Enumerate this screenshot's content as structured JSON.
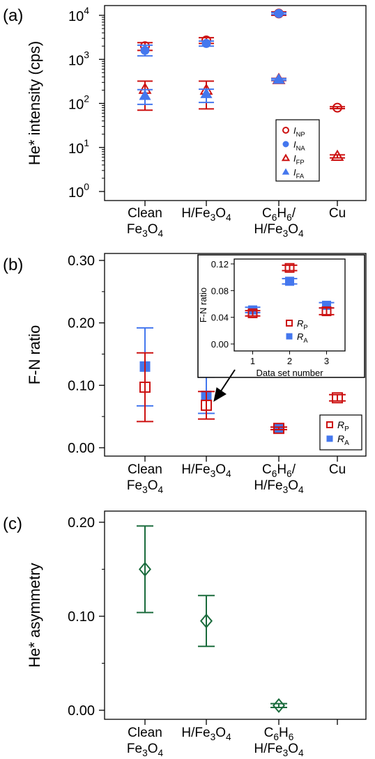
{
  "colors": {
    "red": "#cc1111",
    "blue": "#4477ee",
    "green": "#1a6b3c"
  },
  "chart_data": [
    {
      "panel_label": "(a)",
      "type": "scatter",
      "ylabel": "He* intensity (cps)",
      "yscale": "log",
      "ylim": [
        1,
        10000
      ],
      "yticks": [
        {
          "value": 1,
          "base": "10",
          "exp": "0"
        },
        {
          "value": 10,
          "base": "10",
          "exp": "1"
        },
        {
          "value": 100,
          "base": "10",
          "exp": "2"
        },
        {
          "value": 1000,
          "base": "10",
          "exp": "3"
        },
        {
          "value": 10000,
          "base": "10",
          "exp": "4"
        }
      ],
      "categories": [
        {
          "line1": "Clean",
          "line2": "Fe3O4"
        },
        {
          "line1": "H/Fe3O4",
          "line2": ""
        },
        {
          "line1": "C6H6/",
          "line2": "H/Fe3O4"
        },
        {
          "line1": "Cu",
          "line2": ""
        }
      ],
      "legend": {
        "position": "bottom-right",
        "entries": [
          "I_NP",
          "I_NA",
          "I_FP",
          "I_FA"
        ]
      },
      "series": [
        {
          "name": "I_NP",
          "marker": "circle-open",
          "color": "red",
          "points": [
            {
              "x": 0,
              "y": 2000,
              "lo": 1600,
              "hi": 2400
            },
            {
              "x": 1,
              "y": 2700,
              "lo": 2300,
              "hi": 3100
            },
            {
              "x": 2,
              "y": 11000,
              "lo": 10000,
              "hi": 12000
            },
            {
              "x": 3,
              "y": 80,
              "lo": 76,
              "hi": 84
            }
          ]
        },
        {
          "name": "I_NA",
          "marker": "circle-filled",
          "color": "blue",
          "points": [
            {
              "x": 0,
              "y": 1600,
              "lo": 1200,
              "hi": 2100
            },
            {
              "x": 1,
              "y": 2300,
              "lo": 2000,
              "hi": 2600
            },
            {
              "x": 2,
              "y": 11000,
              "lo": 10500,
              "hi": 11500
            }
          ]
        },
        {
          "name": "I_FP",
          "marker": "triangle-open",
          "color": "red",
          "points": [
            {
              "x": 0,
              "y": 210,
              "lo": 70,
              "hi": 320
            },
            {
              "x": 1,
              "y": 200,
              "lo": 75,
              "hi": 320
            },
            {
              "x": 2,
              "y": 350,
              "lo": 330,
              "hi": 370
            },
            {
              "x": 3,
              "y": 6.3,
              "lo": 5.8,
              "hi": 6.8
            }
          ]
        },
        {
          "name": "I_FA",
          "marker": "triangle-filled",
          "color": "blue",
          "points": [
            {
              "x": 0,
              "y": 150,
              "lo": 95,
              "hi": 205
            },
            {
              "x": 1,
              "y": 165,
              "lo": 105,
              "hi": 210
            },
            {
              "x": 2,
              "y": 350,
              "lo": 335,
              "hi": 365
            }
          ]
        }
      ]
    },
    {
      "panel_label": "(b)",
      "type": "scatter",
      "ylabel": "F-N ratio",
      "ylim": [
        -0.01,
        0.31
      ],
      "yticks": [
        "0.00",
        "0.10",
        "0.20",
        "0.30"
      ],
      "categories": [
        {
          "line1": "Clean",
          "line2": "Fe3O4"
        },
        {
          "line1": "H/Fe3O4",
          "line2": ""
        },
        {
          "line1": "C6H6/",
          "line2": "H/Fe3O4"
        },
        {
          "line1": "Cu",
          "line2": ""
        }
      ],
      "legend": {
        "position": "bottom-right",
        "entries": [
          "R_P",
          "R_A"
        ]
      },
      "series": [
        {
          "name": "R_P",
          "marker": "square-open",
          "color": "red",
          "points": [
            {
              "x": 0,
              "y": 0.097,
              "lo": 0.042,
              "hi": 0.152
            },
            {
              "x": 1,
              "y": 0.068,
              "lo": 0.046,
              "hi": 0.09
            },
            {
              "x": 2,
              "y": 0.031,
              "lo": 0.029,
              "hi": 0.033
            },
            {
              "x": 3,
              "y": 0.08,
              "lo": 0.075,
              "hi": 0.085
            }
          ]
        },
        {
          "name": "R_A",
          "marker": "square-filled",
          "color": "blue",
          "points": [
            {
              "x": 0,
              "y": 0.13,
              "lo": 0.067,
              "hi": 0.192
            },
            {
              "x": 1,
              "y": 0.083,
              "lo": 0.055,
              "hi": 0.113
            },
            {
              "x": 2,
              "y": 0.031,
              "lo": 0.029,
              "hi": 0.033
            }
          ]
        }
      ],
      "inset": {
        "xlabel": "Data set number",
        "ylabel": "F-N ratio",
        "xlim": [
          0.5,
          3.5
        ],
        "ylim": [
          -0.006,
          0.126
        ],
        "xticks": [
          "1",
          "2",
          "3"
        ],
        "yticks": [
          "0.00",
          "0.04",
          "0.08",
          "0.12"
        ],
        "legend": {
          "position": "bottom-right",
          "entries": [
            "R_P",
            "R_A"
          ]
        },
        "series": [
          {
            "name": "R_P",
            "marker": "square-open",
            "color": "red",
            "points": [
              {
                "x": 1,
                "y": 0.046,
                "lo": 0.042,
                "hi": 0.05
              },
              {
                "x": 2,
                "y": 0.114,
                "lo": 0.11,
                "hi": 0.118
              },
              {
                "x": 3,
                "y": 0.049,
                "lo": 0.044,
                "hi": 0.054
              }
            ]
          },
          {
            "name": "R_A",
            "marker": "square-filled",
            "color": "blue",
            "points": [
              {
                "x": 1,
                "y": 0.051,
                "lo": 0.047,
                "hi": 0.055
              },
              {
                "x": 2,
                "y": 0.094,
                "lo": 0.09,
                "hi": 0.098
              },
              {
                "x": 3,
                "y": 0.058,
                "lo": 0.054,
                "hi": 0.062
              }
            ]
          }
        ]
      }
    },
    {
      "panel_label": "(c)",
      "type": "scatter",
      "ylabel": "He* asymmetry",
      "ylim": [
        -0.01,
        0.21
      ],
      "yticks": [
        "0.00",
        "0.10",
        "0.20"
      ],
      "categories": [
        {
          "line1": "Clean",
          "line2": "Fe3O4"
        },
        {
          "line1": "H/Fe3O4",
          "line2": ""
        },
        {
          "line1": "C6H6",
          "line2": "H/Fe3O4"
        }
      ],
      "series": [
        {
          "name": "",
          "marker": "diamond-open",
          "color": "green",
          "points": [
            {
              "x": 0,
              "y": 0.15,
              "lo": 0.104,
              "hi": 0.196
            },
            {
              "x": 1,
              "y": 0.095,
              "lo": 0.068,
              "hi": 0.122
            },
            {
              "x": 2,
              "y": 0.005,
              "lo": 0.003,
              "hi": 0.007
            }
          ]
        }
      ]
    }
  ]
}
